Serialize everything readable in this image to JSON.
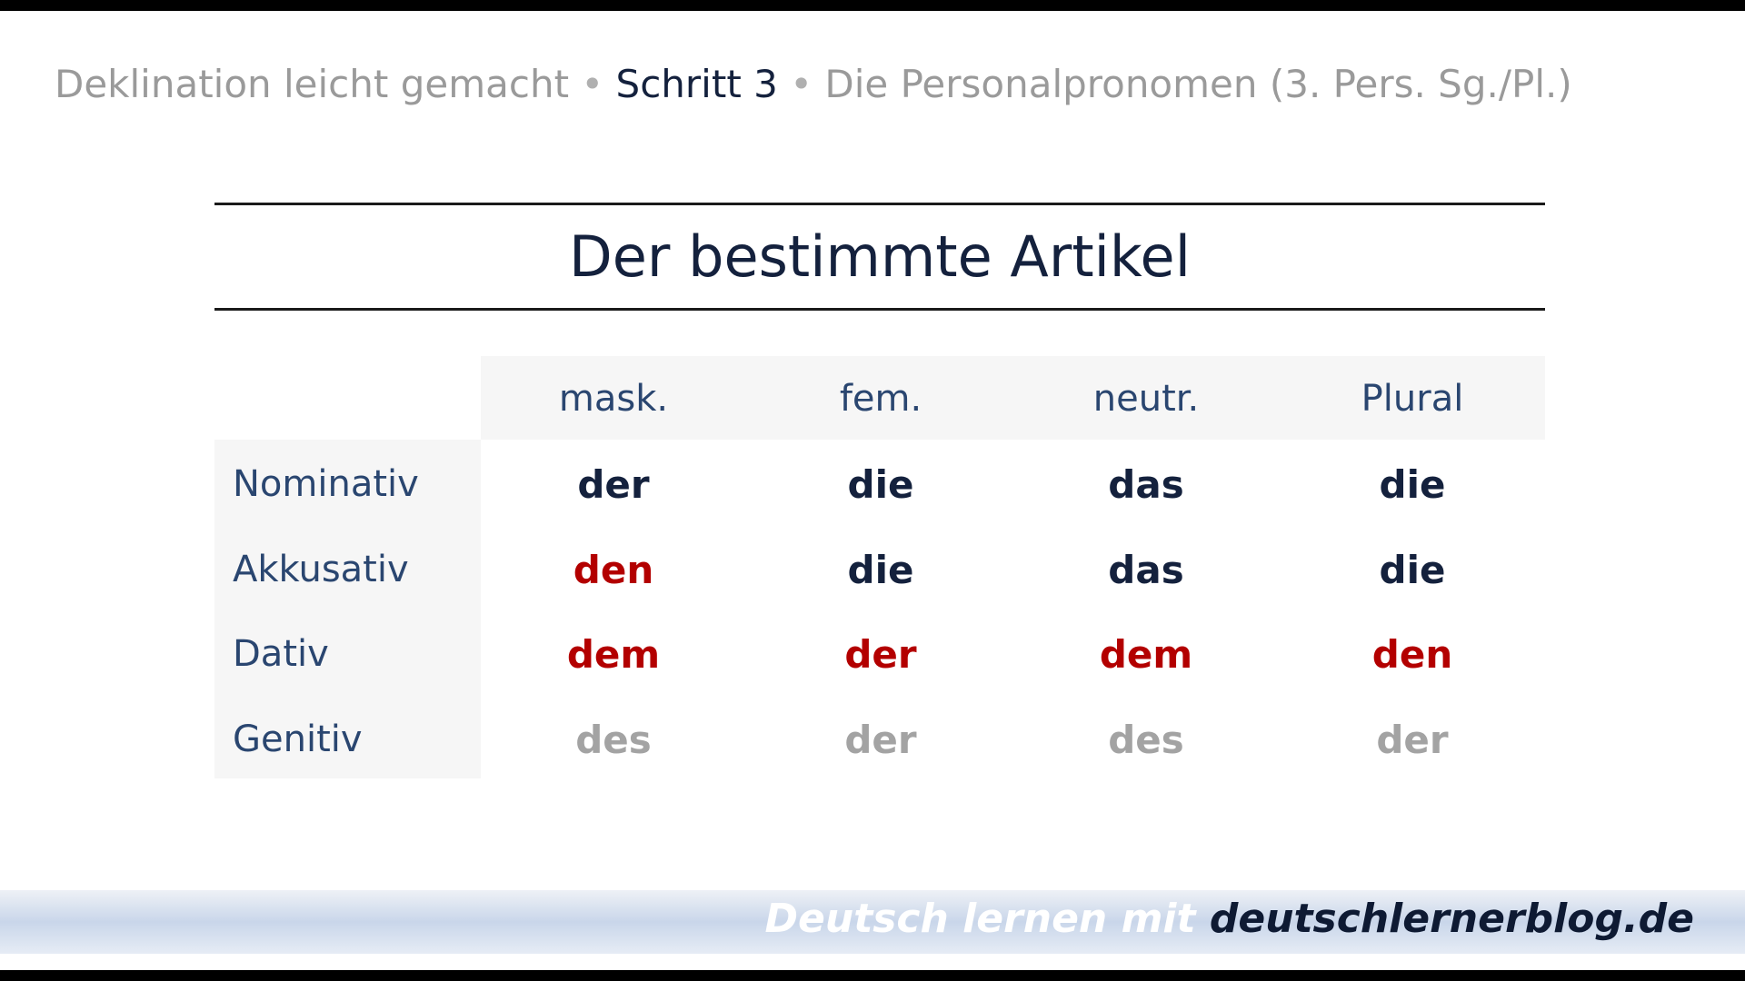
{
  "header": {
    "course": "Deklination leicht gemacht",
    "separator": "•",
    "step": "Schritt 3",
    "topic": "Die Personalpronomen (3. Pers. Sg./Pl.)"
  },
  "title": "Der bestimmte Artikel",
  "table": {
    "columns": [
      "mask.",
      "fem.",
      "neutr.",
      "Plural"
    ],
    "rows": [
      {
        "label": "Nominativ",
        "cells": [
          "der",
          "die",
          "das",
          "die"
        ]
      },
      {
        "label": "Akkusativ",
        "cells": [
          "den",
          "die",
          "das",
          "die"
        ]
      },
      {
        "label": "Dativ",
        "cells": [
          "dem",
          "der",
          "dem",
          "den"
        ]
      },
      {
        "label": "Genitiv",
        "cells": [
          "des",
          "der",
          "des",
          "der"
        ]
      }
    ]
  },
  "colors": {
    "normal": "#14213d",
    "changed": "#b30000",
    "genitive": "#a3a3a3"
  },
  "footer": {
    "prefix": "Deutsch lernen mit",
    "site": "deutschlernerblog.de"
  }
}
